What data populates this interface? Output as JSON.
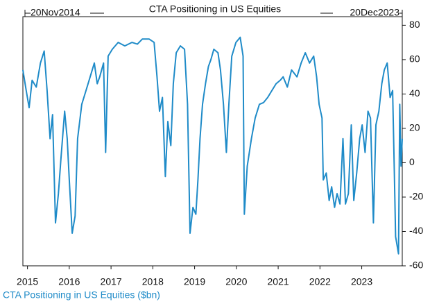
{
  "chart_data": {
    "type": "line",
    "title": "CTA Positioning in US Equities",
    "annotations": [
      "20Nov2014",
      "20Dec2023"
    ],
    "xlim": [
      2014.89,
      2023.97
    ],
    "xticks": [
      2015,
      2016,
      2017,
      2018,
      2019,
      2020,
      2021,
      2022,
      2023
    ],
    "ylim": [
      -60,
      85
    ],
    "yticks": [
      -60,
      -40,
      -20,
      0,
      20,
      40,
      60,
      80
    ],
    "y_axis_side": "right",
    "x": [
      2014.89,
      2014.97,
      2015.04,
      2015.11,
      2015.21,
      2015.31,
      2015.4,
      2015.47,
      2015.54,
      2015.6,
      2015.67,
      2015.74,
      2015.8,
      2015.89,
      2015.95,
      2016.0,
      2016.07,
      2016.14,
      2016.2,
      2016.3,
      2016.4,
      2016.5,
      2016.6,
      2016.67,
      2016.73,
      2016.82,
      2016.87,
      2016.93,
      2017.03,
      2017.17,
      2017.33,
      2017.5,
      2017.63,
      2017.75,
      2017.91,
      2018.03,
      2018.1,
      2018.16,
      2018.23,
      2018.3,
      2018.36,
      2018.43,
      2018.49,
      2018.56,
      2018.66,
      2018.76,
      2018.83,
      2018.89,
      2018.96,
      2019.03,
      2019.08,
      2019.13,
      2019.19,
      2019.26,
      2019.33,
      2019.39,
      2019.46,
      2019.56,
      2019.62,
      2019.69,
      2019.76,
      2019.82,
      2019.89,
      2019.99,
      2020.09,
      2020.16,
      2020.19,
      2020.26,
      2020.36,
      2020.45,
      2020.55,
      2020.65,
      2020.75,
      2020.85,
      2020.95,
      2021.05,
      2021.12,
      2021.22,
      2021.32,
      2021.45,
      2021.55,
      2021.65,
      2021.75,
      2021.85,
      2021.92,
      2021.98,
      2022.05,
      2022.08,
      2022.15,
      2022.22,
      2022.28,
      2022.35,
      2022.41,
      2022.48,
      2022.55,
      2022.61,
      2022.68,
      2022.75,
      2022.81,
      2022.88,
      2022.95,
      2023.01,
      2023.08,
      2023.15,
      2023.21,
      2023.28,
      2023.34,
      2023.41,
      2023.48,
      2023.54,
      2023.61,
      2023.68,
      2023.74,
      2023.78,
      2023.81,
      2023.88,
      2023.91,
      2023.94,
      2023.97
    ],
    "series": [
      {
        "name": "CTA Positioning in US Equities ($bn)",
        "color": "#1f8bc8",
        "values": [
          54,
          42,
          32,
          48,
          44,
          58,
          65,
          42,
          14,
          28,
          -35,
          -18,
          2,
          30,
          14,
          -10,
          -41,
          -31,
          14,
          34,
          42,
          50,
          58,
          46,
          50,
          58,
          6,
          62,
          66,
          70,
          68,
          70,
          69,
          72,
          72,
          70,
          50,
          30,
          38,
          -8,
          24,
          10,
          46,
          64,
          68,
          66,
          34,
          -41,
          -26,
          -30,
          -10,
          14,
          34,
          46,
          56,
          60,
          66,
          64,
          54,
          34,
          6,
          34,
          62,
          70,
          73,
          62,
          -30,
          -2,
          14,
          26,
          34,
          35,
          38,
          42,
          46,
          48,
          50,
          44,
          54,
          50,
          58,
          64,
          58,
          62,
          50,
          34,
          26,
          -10,
          -6,
          -22,
          -14,
          -26,
          -18,
          -24,
          14,
          -24,
          -18,
          22,
          -22,
          -6,
          14,
          22,
          6,
          30,
          26,
          -35,
          22,
          30,
          46,
          54,
          58,
          38,
          42,
          -6,
          -43,
          -53,
          34,
          -2,
          14
        ]
      }
    ]
  }
}
